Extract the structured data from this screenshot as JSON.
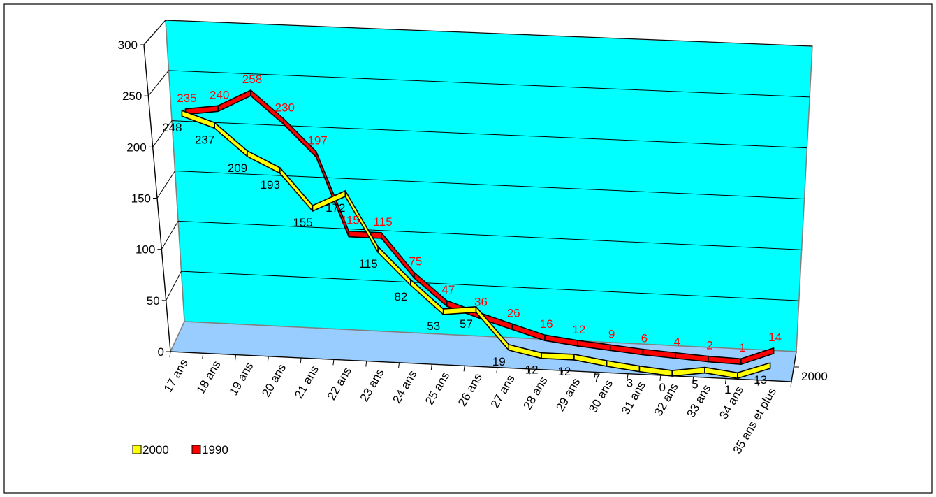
{
  "chart_data": {
    "type": "line",
    "categories": [
      "17 ans",
      "18 ans",
      "19 ans",
      "20 ans",
      "21 ans",
      "22 ans",
      "23 ans",
      "24 ans",
      "25 ans",
      "26 ans",
      "27 ans",
      "28 ans",
      "29 ans",
      "30 ans",
      "31 ans",
      "32 ans",
      "33 ans",
      "34 ans",
      "35 ans et plus"
    ],
    "series": [
      {
        "name": "2000",
        "values": [
          248,
          237,
          209,
          193,
          155,
          172,
          115,
          82,
          53,
          57,
          19,
          12,
          12,
          7,
          3,
          0,
          5,
          1,
          13
        ],
        "color": "#ffff00"
      },
      {
        "name": "1990",
        "values": [
          235,
          240,
          258,
          230,
          197,
          115,
          115,
          75,
          47,
          36,
          26,
          16,
          12,
          9,
          6,
          4,
          2,
          1,
          14
        ],
        "color": "#ff0000"
      }
    ],
    "depth_axis_label": "2000",
    "label_color_1990": "#ff0000",
    "wall_color": "#00ffff",
    "floor_color": "#99ccff",
    "yticks": [
      0,
      50,
      100,
      150,
      200,
      250,
      300
    ],
    "ylim": [
      0,
      300
    ],
    "grid": true,
    "legend": {
      "position": "bottom-left",
      "entries": [
        "2000",
        "1990"
      ]
    },
    "view": "3d-line"
  }
}
